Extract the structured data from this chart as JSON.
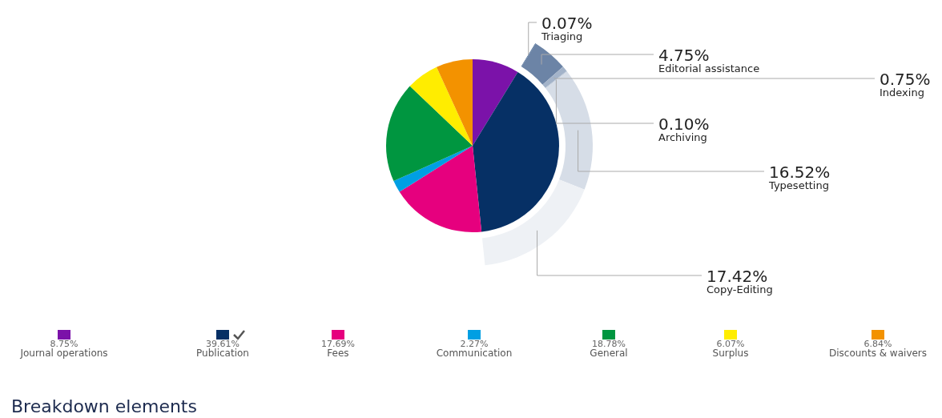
{
  "chart_data": [
    {
      "type": "pie",
      "categories": [
        "Journal operations",
        "Publication",
        "Fees",
        "Communication",
        "General",
        "Surplus",
        "Discounts & waivers"
      ],
      "values": [
        8.75,
        39.61,
        17.69,
        2.27,
        18.78,
        6.07,
        6.84
      ],
      "colors": [
        "#7b12a9",
        "#063065",
        "#e6007e",
        "#009fe3",
        "#009640",
        "#ffed00",
        "#f39200"
      ],
      "value_labels": [
        "8.75%",
        "39.61%",
        "17.69%",
        "2.27%",
        "18.78%",
        "6.07%",
        "6.84%"
      ],
      "legend": "bottom",
      "annotations": [
        "Breakdown elements"
      ]
    },
    {
      "type": "donut",
      "categories": [
        "Triaging",
        "Editorial assistance",
        "Indexing",
        "Archiving",
        "Typesetting",
        "Copy-Editing"
      ],
      "values": [
        0.07,
        4.75,
        0.75,
        0.1,
        16.52,
        17.42
      ],
      "colors": [
        "#2d5585",
        "#6c84a6",
        "#a3b3c9",
        "#bcc8d8",
        "#d6dde7",
        "#eef1f5"
      ],
      "value_labels": [
        "0.07%",
        "4.75%",
        "0.75%",
        "0.10%",
        "16.52%",
        "17.42%"
      ]
    }
  ]
}
